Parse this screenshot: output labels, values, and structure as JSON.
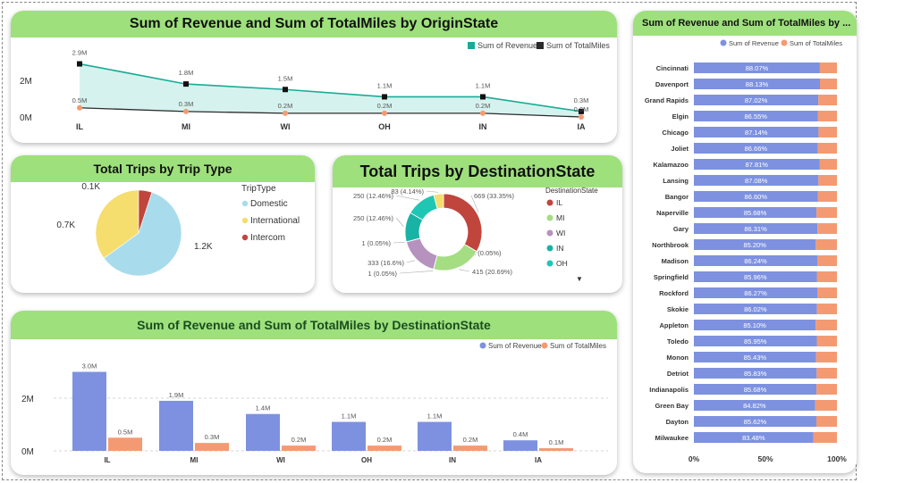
{
  "colors": {
    "revenue": "#7d91e0",
    "miles": "#f49a72",
    "line_revenue": "#1aab97",
    "area_fill": "#d6f2ee",
    "line_miles": "#2b2b2b",
    "header": "#9ee07c",
    "pie_domestic": "#a8dcec",
    "pie_international": "#f5dd6e",
    "pie_intercom": "#c0453d",
    "donut_il": "#c0453d",
    "donut_mi": "#a5dd83",
    "donut_wi": "#b692be",
    "donut_in": "#19b3a5",
    "donut_oh": "#1fc6b3",
    "donut_other": "#f5dd6e"
  },
  "charts": {
    "origin": {
      "title": "Sum of Revenue and Sum of TotalMiles by OriginState",
      "legend": {
        "revenue": "Sum of Revenue",
        "miles": "Sum of TotalMiles"
      },
      "y_ticks": [
        "2M",
        "0M"
      ]
    },
    "trip_type": {
      "title": "Total Trips by Trip Type",
      "legend_title": "TripType",
      "legend": [
        "Domestic",
        "International",
        "Intercom"
      ]
    },
    "dest_trips": {
      "title": "Total Trips by DestinationState",
      "legend_title": "DestinationState",
      "legend": [
        "IL",
        "MI",
        "WI",
        "IN",
        "OH"
      ],
      "more_icon": "▼"
    },
    "dest_rev": {
      "title": "Sum of Revenue and Sum of TotalMiles by DestinationState",
      "legend": {
        "revenue": "Sum of Revenue",
        "miles": "Sum of TotalMiles"
      },
      "y_ticks": [
        "2M",
        "0M"
      ]
    },
    "city": {
      "title": "Sum of Revenue and Sum of TotalMiles by ...",
      "legend": {
        "revenue": "Sum of Revenue",
        "miles": "Sum of TotalMiles"
      },
      "x_ticks": [
        "0%",
        "50%",
        "100%"
      ]
    }
  },
  "chart_data": [
    {
      "id": "origin",
      "type": "line",
      "title": "Sum of Revenue and Sum of TotalMiles by OriginState",
      "categories": [
        "IL",
        "MI",
        "WI",
        "OH",
        "IN",
        "IA"
      ],
      "series": [
        {
          "name": "Sum of Revenue",
          "values": [
            2.9,
            1.8,
            1.5,
            1.1,
            1.1,
            0.3
          ],
          "labels": [
            "2.9M",
            "1.8M",
            "1.5M",
            "1.1M",
            "1.1M",
            "0.3M"
          ]
        },
        {
          "name": "Sum of TotalMiles",
          "values": [
            0.5,
            0.3,
            0.2,
            0.2,
            0.2,
            0.0
          ],
          "labels": [
            "0.5M",
            "0.3M",
            "0.2M",
            "0.2M",
            "0.2M",
            "0.0M"
          ]
        }
      ],
      "ylim": [
        0,
        3.0
      ],
      "legend_position": "top-right"
    },
    {
      "id": "trip_type",
      "type": "pie",
      "title": "Total Trips by Trip Type",
      "categories": [
        "Domestic",
        "International",
        "Intercom"
      ],
      "values": [
        1.2,
        0.7,
        0.1
      ],
      "labels": [
        "1.2K",
        "0.7K",
        "0.1K"
      ],
      "legend_position": "right"
    },
    {
      "id": "dest_trips",
      "type": "pie",
      "title": "Total Trips by DestinationState",
      "slices": [
        {
          "value": 669,
          "label": "669 (33.35%)"
        },
        {
          "value": 1,
          "label": "1 (0.05%)"
        },
        {
          "value": 415,
          "label": "415 (20.69%)"
        },
        {
          "value": 1,
          "label": "1 (0.05%)"
        },
        {
          "value": 333,
          "label": "333 (16.6%)"
        },
        {
          "value": 1,
          "label": "1 (0.05%)"
        },
        {
          "value": 250,
          "label": "250 (12.46%)"
        },
        {
          "value": 250,
          "label": "250 (12.46%)"
        },
        {
          "value": 83,
          "label": "83 (4.14%)"
        }
      ],
      "legend_position": "right"
    },
    {
      "id": "dest_rev",
      "type": "bar",
      "title": "Sum of Revenue and Sum of TotalMiles by DestinationState",
      "categories": [
        "IL",
        "MI",
        "WI",
        "OH",
        "IN",
        "IA"
      ],
      "series": [
        {
          "name": "Sum of Revenue",
          "values": [
            3.0,
            1.9,
            1.4,
            1.1,
            1.1,
            0.4
          ],
          "labels": [
            "3.0M",
            "1.9M",
            "1.4M",
            "1.1M",
            "1.1M",
            "0.4M"
          ]
        },
        {
          "name": "Sum of TotalMiles",
          "values": [
            0.5,
            0.3,
            0.2,
            0.2,
            0.2,
            0.1
          ],
          "labels": [
            "0.5M",
            "0.3M",
            "0.2M",
            "0.2M",
            "0.2M",
            "0.1M"
          ]
        }
      ],
      "ylim": [
        0,
        3.3
      ],
      "legend_position": "top-right"
    },
    {
      "id": "city",
      "type": "bar",
      "orientation": "horizontal",
      "stacked_percent": true,
      "title": "Sum of Revenue and Sum of TotalMiles by ...",
      "categories": [
        "Cincinnati",
        "Davenport",
        "Grand Rapids",
        "Elgin",
        "Chicago",
        "Joliet",
        "Kalamazoo",
        "Lansing",
        "Bangor",
        "Naperville",
        "Gary",
        "Northbrook",
        "Madison",
        "Springfield",
        "Rockford",
        "Skokie",
        "Appleton",
        "Toledo",
        "Monon",
        "Detriot",
        "Indianapolis",
        "Green Bay",
        "Dayton",
        "Milwaukee"
      ],
      "series": [
        {
          "name": "Sum of Revenue",
          "values": [
            88.07,
            88.13,
            87.02,
            86.55,
            87.14,
            86.66,
            87.81,
            87.08,
            86.6,
            85.68,
            86.31,
            85.2,
            86.24,
            85.96,
            86.27,
            86.02,
            85.1,
            85.95,
            85.43,
            85.83,
            85.68,
            84.82,
            85.62,
            83.48
          ],
          "labels": [
            "88.07%",
            "88.13%",
            "87.02%",
            "86.55%",
            "87.14%",
            "86.66%",
            "87.81%",
            "87.08%",
            "86.60%",
            "85.68%",
            "86.31%",
            "85.20%",
            "86.24%",
            "85.96%",
            "86.27%",
            "86.02%",
            "85.10%",
            "85.95%",
            "85.43%",
            "85.83%",
            "85.68%",
            "84.82%",
            "85.62%",
            "83.48%"
          ]
        },
        {
          "name": "Sum of TotalMiles",
          "values": [
            11.93,
            11.87,
            12.98,
            13.45,
            12.86,
            13.34,
            12.19,
            12.92,
            13.4,
            14.32,
            13.69,
            14.8,
            13.76,
            14.04,
            13.73,
            13.98,
            14.9,
            14.05,
            14.57,
            14.17,
            14.32,
            15.18,
            14.38,
            16.52
          ]
        }
      ],
      "xlim": [
        0,
        100
      ],
      "legend_position": "top-center"
    }
  ]
}
